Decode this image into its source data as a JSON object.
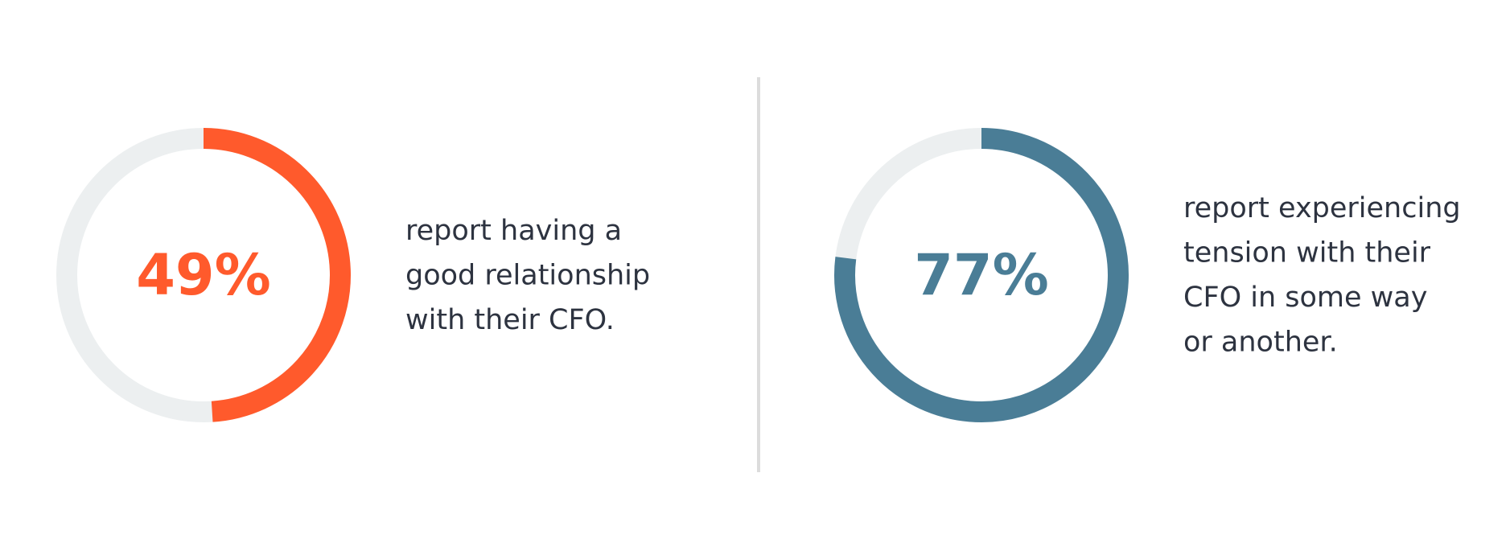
{
  "chart_data": [
    {
      "type": "donut",
      "values": [
        49
      ],
      "value_labels": [
        "49%"
      ],
      "ylim": [
        0,
        100
      ],
      "color": "#ff5a2c",
      "track_color": "#eceff0",
      "description": [
        "report having a",
        "good relationship",
        "with their CFO."
      ]
    },
    {
      "type": "donut",
      "values": [
        77
      ],
      "value_labels": [
        "77%"
      ],
      "ylim": [
        0,
        100
      ],
      "color": "#4a7d96",
      "track_color": "#eceff0",
      "description": [
        "report experiencing",
        "tension with their",
        "CFO in some way",
        "or another."
      ]
    }
  ]
}
